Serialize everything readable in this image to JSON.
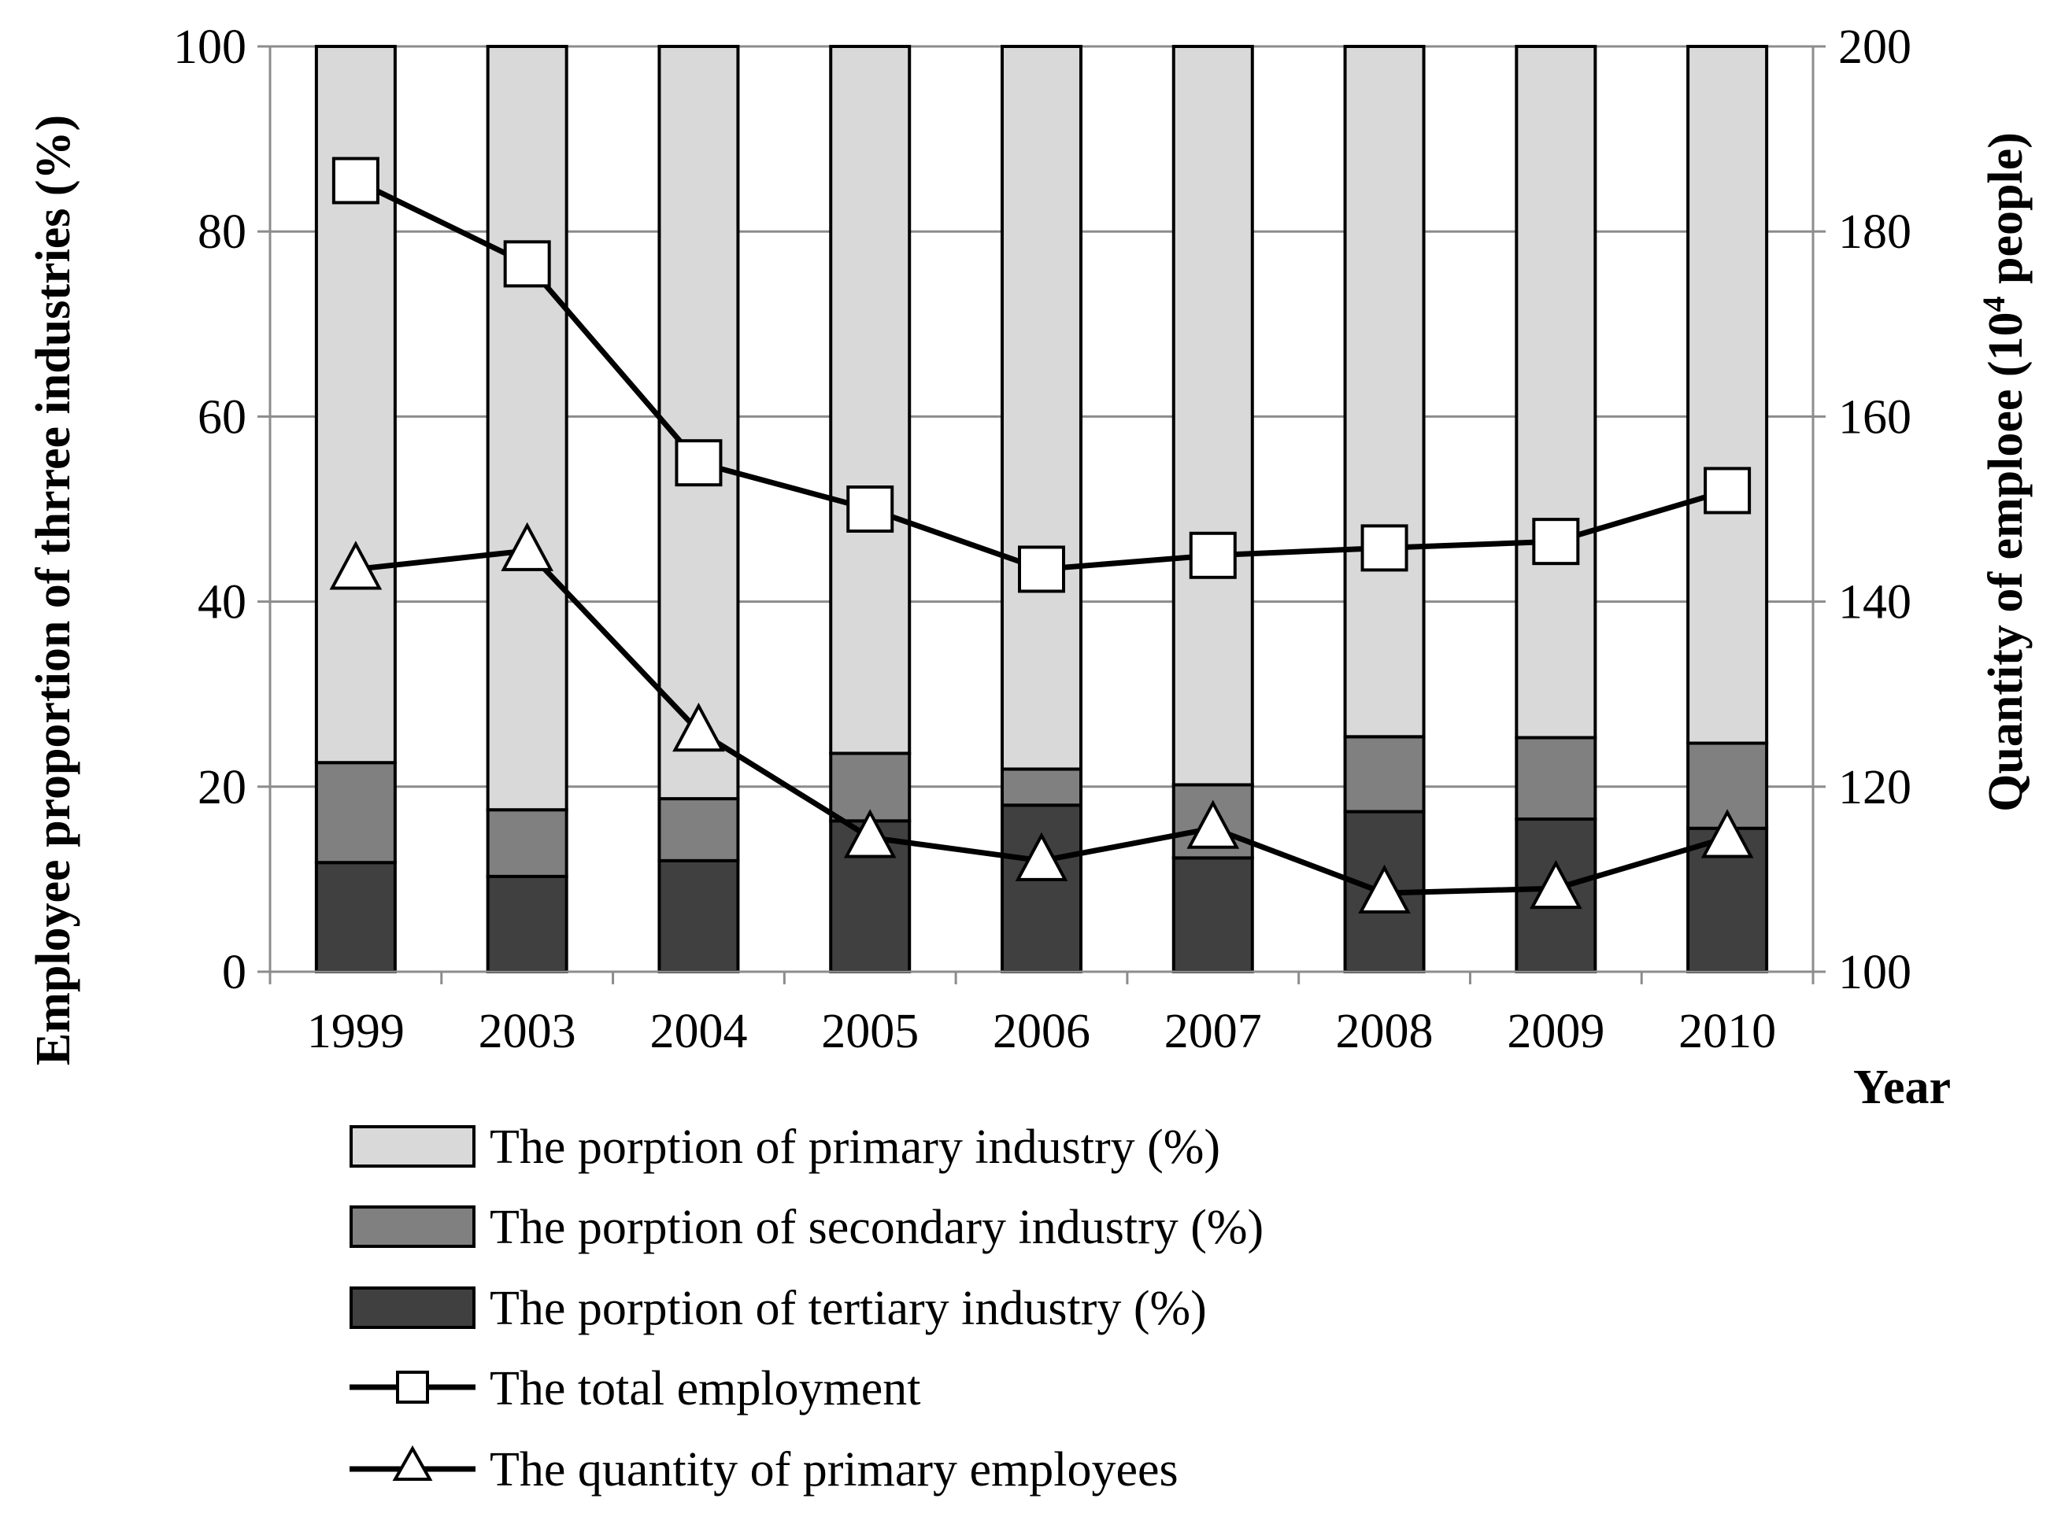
{
  "chart_data": {
    "type": "bar",
    "categories": [
      "1999",
      "2003",
      "2004",
      "2005",
      "2006",
      "2007",
      "2008",
      "2009",
      "2010"
    ],
    "stacked_series": [
      {
        "name": "The porption of tertiary industry (%)",
        "color": "#404040",
        "values": [
          11.8,
          10.3,
          12.0,
          16.3,
          18.0,
          12.3,
          17.3,
          16.5,
          15.5
        ]
      },
      {
        "name": "The porption of secondary industry (%)",
        "color": "#808080",
        "values": [
          10.8,
          7.2,
          6.7,
          7.3,
          3.9,
          7.9,
          8.1,
          8.8,
          9.2
        ]
      },
      {
        "name": "The porption of primary industry (%)",
        "color": "#d9d9d9",
        "values": [
          77.4,
          82.5,
          81.3,
          76.4,
          78.1,
          79.8,
          74.6,
          74.7,
          75.3
        ]
      }
    ],
    "line_series": [
      {
        "name": "The total employment",
        "marker": "square",
        "values": [
          185.5,
          176.5,
          155.0,
          150.0,
          143.5,
          145.0,
          145.8,
          146.5,
          152.0
        ]
      },
      {
        "name": "The quantity of primary employees",
        "marker": "triangle",
        "values": [
          143.5,
          145.5,
          126.0,
          114.5,
          112.0,
          115.5,
          108.5,
          109.0,
          114.5
        ]
      }
    ],
    "ylabel_left": "Employee proportion of thrree industries (%)",
    "ylabel_right_main": "Quantity of emploee (10",
    "ylabel_right_sup": "4",
    "ylabel_right_end": " people)",
    "xlabel": "Year",
    "ylim_left": [
      0,
      100
    ],
    "ylim_right": [
      100,
      200
    ],
    "yticks_left": [
      "0",
      "20",
      "40",
      "60",
      "80",
      "100"
    ],
    "yticks_right": [
      "100",
      "120",
      "140",
      "160",
      "180",
      "200"
    ],
    "grid": true,
    "legend_position": "bottom"
  }
}
